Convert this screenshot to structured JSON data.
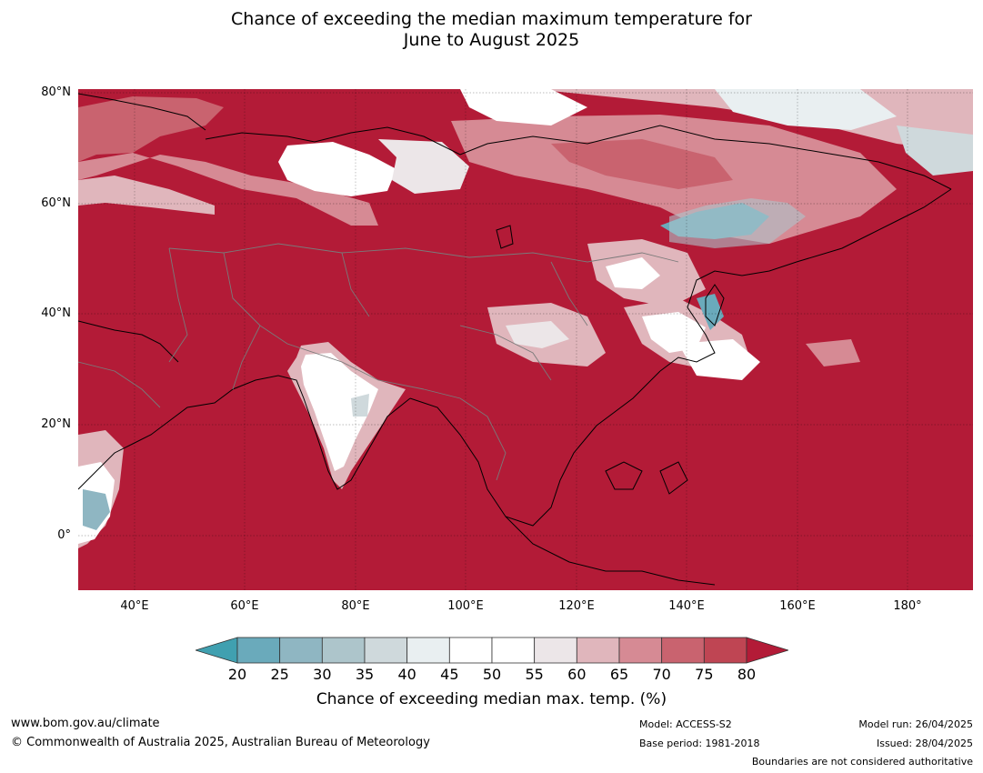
{
  "title": {
    "line1": "Chance of exceeding the median maximum temperature for",
    "line2": "June to August 2025"
  },
  "map": {
    "region": "Asia",
    "lat_labels": [
      "80°N",
      "60°N",
      "40°N",
      "20°N",
      "0°"
    ],
    "lon_labels": [
      "40°E",
      "60°E",
      "80°E",
      "100°E",
      "120°E",
      "140°E",
      "160°E",
      "180°"
    ],
    "dominant_color": "#b31b37"
  },
  "colorbar": {
    "ticks": [
      "20",
      "25",
      "30",
      "35",
      "40",
      "45",
      "50",
      "55",
      "60",
      "65",
      "70",
      "75",
      "80"
    ],
    "colors": [
      "#40a0b0",
      "#6aaabb",
      "#8fb6c2",
      "#adc5cb",
      "#cfd9dc",
      "#e9eff1",
      "#ffffff",
      "#ffffff",
      "#ece6e8",
      "#e0b6bc",
      "#d68a94",
      "#c9636f",
      "#bf4553",
      "#b31b37"
    ],
    "title": "Chance of exceeding median max. temp. (%)"
  },
  "footer": {
    "website": "www.bom.gov.au/climate",
    "copyright": "© Commonwealth of Australia 2025, Australian Bureau of Meteorology",
    "model": "Model: ACCESS-S2",
    "base_period": "Base period: 1981-2018",
    "model_run": "Model run: 26/04/2025",
    "issued": "Issued: 28/04/2025",
    "boundaries_note": "Boundaries are not considered authoritative"
  }
}
